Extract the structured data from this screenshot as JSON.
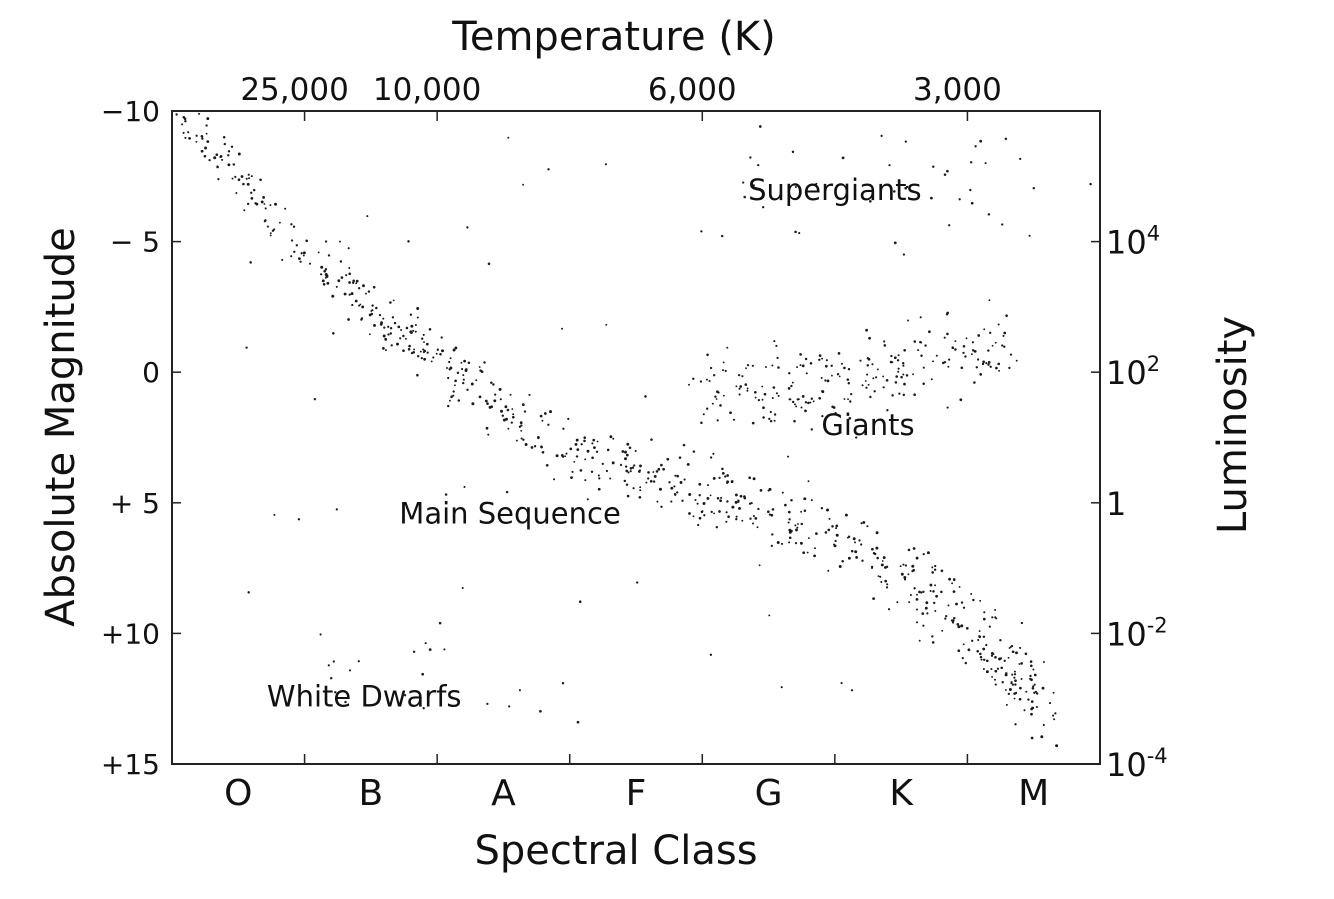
{
  "chart_data": {
    "type": "scatter",
    "title": "Temperature (K)",
    "xlabel": "Spectral Class",
    "ylabel": "Absolute Magnitude",
    "ylabel_right": "Luminosity",
    "spectral_classes": [
      "O",
      "B",
      "A",
      "F",
      "G",
      "K",
      "M"
    ],
    "temperature_ticks": [
      {
        "label": "25,000",
        "class_pos": 1.0
      },
      {
        "label": "10,000",
        "class_pos": 2.0
      },
      {
        "label": "6,000",
        "class_pos": 4.0
      },
      {
        "label": "3,000",
        "class_pos": 6.0
      }
    ],
    "magnitude_ticks": [
      {
        "label": "−10",
        "value": -10
      },
      {
        "label": "− 5",
        "value": -5
      },
      {
        "label": "0",
        "value": 0
      },
      {
        "label": "+ 5",
        "value": 5
      },
      {
        "label": "+10",
        "value": 10
      },
      {
        "label": "+15",
        "value": 15
      }
    ],
    "luminosity_ticks": [
      {
        "base": "10",
        "exp": "4",
        "magnitude": -5
      },
      {
        "base": "10",
        "exp": "2",
        "magnitude": 0
      },
      {
        "base": "1",
        "exp": "",
        "magnitude": 5
      },
      {
        "base": "10",
        "exp": "-2",
        "magnitude": 10
      },
      {
        "base": "10",
        "exp": "-4",
        "magnitude": 15
      }
    ],
    "xlim": [
      0,
      7
    ],
    "ylim": [
      -10,
      15
    ],
    "y_inverted": true,
    "grid": false,
    "regions": [
      {
        "label": "Supergiants",
        "class_pos": 5.0,
        "magnitude": -6.6
      },
      {
        "label": "Giants",
        "class_pos": 5.25,
        "magnitude": 2.4
      },
      {
        "label": "Main Sequence",
        "class_pos": 2.55,
        "magnitude": 5.8
      },
      {
        "label": "White Dwarfs",
        "class_pos": 1.45,
        "magnitude": 12.8
      }
    ],
    "sequences": {
      "main_sequence": [
        [
          0.05,
          -9.9
        ],
        [
          0.5,
          -7.5
        ],
        [
          1.0,
          -4.5
        ],
        [
          1.5,
          -2.5
        ],
        [
          2.0,
          -0.5
        ],
        [
          2.5,
          1.5
        ],
        [
          3.0,
          3.0
        ],
        [
          3.5,
          3.8
        ],
        [
          4.0,
          4.5
        ],
        [
          4.5,
          5.3
        ],
        [
          5.0,
          6.5
        ],
        [
          5.5,
          7.8
        ],
        [
          6.0,
          9.5
        ],
        [
          6.3,
          11.0
        ],
        [
          6.6,
          13.5
        ]
      ],
      "giants": [
        [
          4.0,
          0.6
        ],
        [
          4.5,
          0.6
        ],
        [
          5.0,
          0.2
        ],
        [
          5.5,
          -0.3
        ],
        [
          6.0,
          -0.8
        ],
        [
          6.3,
          -0.9
        ]
      ],
      "supergiants": [
        [
          4.0,
          -7.0
        ],
        [
          5.0,
          -7.5
        ],
        [
          6.0,
          -7.5
        ],
        [
          6.5,
          -8.0
        ]
      ],
      "white_dwarfs": [
        [
          1.0,
          12.5
        ],
        [
          1.5,
          11.0
        ],
        [
          2.0,
          11.5
        ],
        [
          2.5,
          12.5
        ],
        [
          3.0,
          13.0
        ]
      ]
    }
  }
}
